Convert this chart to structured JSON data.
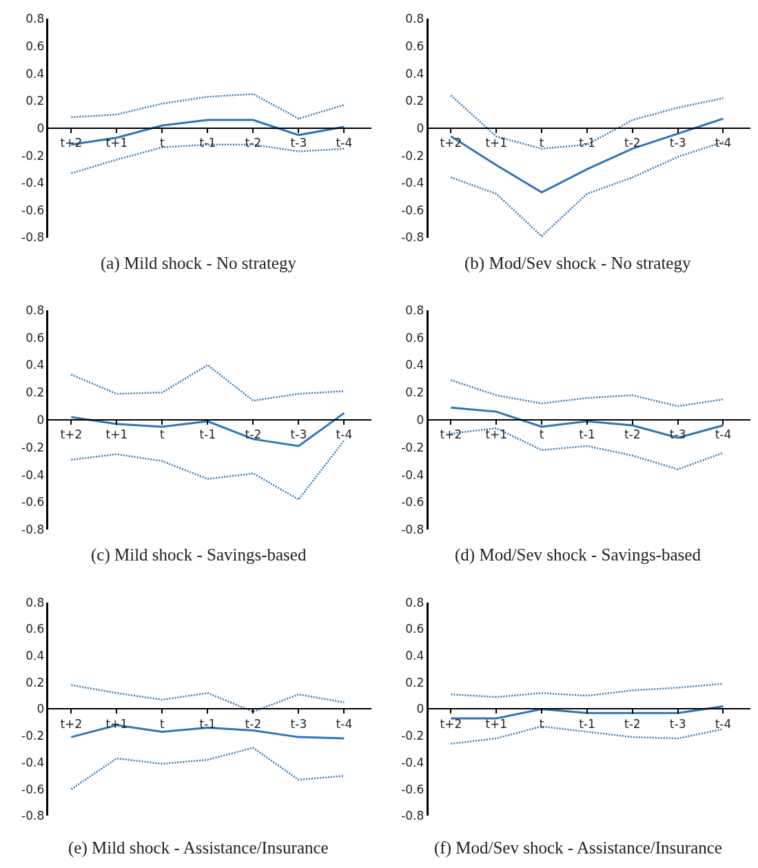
{
  "chart_data": [
    {
      "type": "line",
      "xlabel": "(a) Mild shock - No strategy",
      "categories": [
        "t+2",
        "t+1",
        "t",
        "t-1",
        "t-2",
        "t-3",
        "t-4"
      ],
      "ylim": [
        -0.8,
        0.8
      ],
      "yticks": [
        -0.8,
        -0.6,
        -0.4,
        -0.2,
        0,
        0.2,
        0.4,
        0.6,
        0.8
      ],
      "marker": "none",
      "series": [
        {
          "color": "#2e75b6",
          "line_style": "solid",
          "values": [
            -0.12,
            -0.07,
            0.02,
            0.06,
            0.06,
            -0.05,
            0.01
          ]
        },
        {
          "color": "#2e75b6",
          "line_style": "dotted",
          "values": [
            0.08,
            0.1,
            0.18,
            0.23,
            0.25,
            0.07,
            0.17
          ]
        },
        {
          "color": "#2e75b6",
          "line_style": "dotted",
          "values": [
            -0.33,
            -0.23,
            -0.14,
            -0.12,
            -0.12,
            -0.17,
            -0.15
          ]
        }
      ]
    },
    {
      "type": "line",
      "xlabel": "(b) Mod/Sev shock - No strategy",
      "categories": [
        "t+2",
        "t+1",
        "t",
        "t-1",
        "t-2",
        "t-3",
        "t-4"
      ],
      "ylim": [
        -0.8,
        0.8
      ],
      "yticks": [
        -0.8,
        -0.6,
        -0.4,
        -0.2,
        0,
        0.2,
        0.4,
        0.6,
        0.8
      ],
      "marker": "none",
      "series": [
        {
          "color": "#2e75b6",
          "line_style": "solid",
          "values": [
            -0.06,
            -0.27,
            -0.47,
            -0.3,
            -0.15,
            -0.04,
            0.07
          ]
        },
        {
          "color": "#2e75b6",
          "line_style": "dotted",
          "values": [
            0.24,
            -0.06,
            -0.15,
            -0.12,
            0.06,
            0.15,
            0.22
          ]
        },
        {
          "color": "#2e75b6",
          "line_style": "dotted",
          "values": [
            -0.36,
            -0.48,
            -0.79,
            -0.48,
            -0.36,
            -0.21,
            -0.1
          ]
        }
      ]
    },
    {
      "type": "line",
      "xlabel": "(c) Mild shock - Savings-based",
      "categories": [
        "t+2",
        "t+1",
        "t",
        "t-1",
        "t-2",
        "t-3",
        "t-4"
      ],
      "ylim": [
        -0.8,
        0.8
      ],
      "yticks": [
        -0.8,
        -0.6,
        -0.4,
        -0.2,
        0,
        0.2,
        0.4,
        0.6,
        0.8
      ],
      "marker": "none",
      "series": [
        {
          "color": "#2e75b6",
          "line_style": "solid",
          "values": [
            0.02,
            -0.03,
            -0.05,
            -0.01,
            -0.14,
            -0.19,
            0.05
          ]
        },
        {
          "color": "#2e75b6",
          "line_style": "dotted",
          "values": [
            0.33,
            0.19,
            0.2,
            0.4,
            0.14,
            0.19,
            0.21
          ]
        },
        {
          "color": "#2e75b6",
          "line_style": "dotted",
          "values": [
            -0.29,
            -0.25,
            -0.3,
            -0.43,
            -0.39,
            -0.58,
            -0.15
          ]
        }
      ]
    },
    {
      "type": "line",
      "xlabel": "(d) Mod/Sev shock - Savings-based",
      "categories": [
        "t+2",
        "t+1",
        "t",
        "t-1",
        "t-2",
        "t-3",
        "t-4"
      ],
      "ylim": [
        -0.8,
        0.8
      ],
      "yticks": [
        -0.8,
        -0.6,
        -0.4,
        -0.2,
        0,
        0.2,
        0.4,
        0.6,
        0.8
      ],
      "marker": "none",
      "series": [
        {
          "color": "#2e75b6",
          "line_style": "solid",
          "values": [
            0.09,
            0.06,
            -0.05,
            -0.01,
            -0.04,
            -0.13,
            -0.04
          ]
        },
        {
          "color": "#2e75b6",
          "line_style": "dotted",
          "values": [
            0.29,
            0.18,
            0.12,
            0.16,
            0.18,
            0.1,
            0.15
          ]
        },
        {
          "color": "#2e75b6",
          "line_style": "dotted",
          "values": [
            -0.1,
            -0.06,
            -0.22,
            -0.19,
            -0.26,
            -0.36,
            -0.24
          ]
        }
      ]
    },
    {
      "type": "line",
      "xlabel": "(e) Mild shock - Assistance/Insurance",
      "categories": [
        "t+2",
        "t+1",
        "t",
        "t-1",
        "t-2",
        "t-3",
        "t-4"
      ],
      "ylim": [
        -0.8,
        0.8
      ],
      "yticks": [
        -0.8,
        -0.6,
        -0.4,
        -0.2,
        0,
        0.2,
        0.4,
        0.6,
        0.8
      ],
      "marker": "none",
      "series": [
        {
          "color": "#2e75b6",
          "line_style": "solid",
          "values": [
            -0.21,
            -0.12,
            -0.17,
            -0.14,
            -0.16,
            -0.21,
            -0.22
          ]
        },
        {
          "color": "#2e75b6",
          "line_style": "dotted",
          "values": [
            0.18,
            0.12,
            0.07,
            0.12,
            -0.02,
            0.11,
            0.05
          ]
        },
        {
          "color": "#2e75b6",
          "line_style": "dotted",
          "values": [
            -0.6,
            -0.37,
            -0.41,
            -0.38,
            -0.29,
            -0.53,
            -0.5
          ]
        }
      ]
    },
    {
      "type": "line",
      "xlabel": "(f) Mod/Sev shock - Assistance/Insurance",
      "categories": [
        "t+2",
        "t+1",
        "t",
        "t-1",
        "t-2",
        "t-3",
        "t-4"
      ],
      "ylim": [
        -0.8,
        0.8
      ],
      "yticks": [
        -0.8,
        -0.6,
        -0.4,
        -0.2,
        0,
        0.2,
        0.4,
        0.6,
        0.8
      ],
      "marker": "none",
      "series": [
        {
          "color": "#2e75b6",
          "line_style": "solid",
          "values": [
            -0.07,
            -0.07,
            0.0,
            -0.03,
            -0.03,
            -0.03,
            0.02
          ]
        },
        {
          "color": "#2e75b6",
          "line_style": "dotted",
          "values": [
            0.11,
            0.09,
            0.12,
            0.1,
            0.14,
            0.16,
            0.19
          ]
        },
        {
          "color": "#2e75b6",
          "line_style": "dotted",
          "values": [
            -0.26,
            -0.22,
            -0.13,
            -0.17,
            -0.21,
            -0.22,
            -0.15
          ]
        }
      ]
    }
  ]
}
